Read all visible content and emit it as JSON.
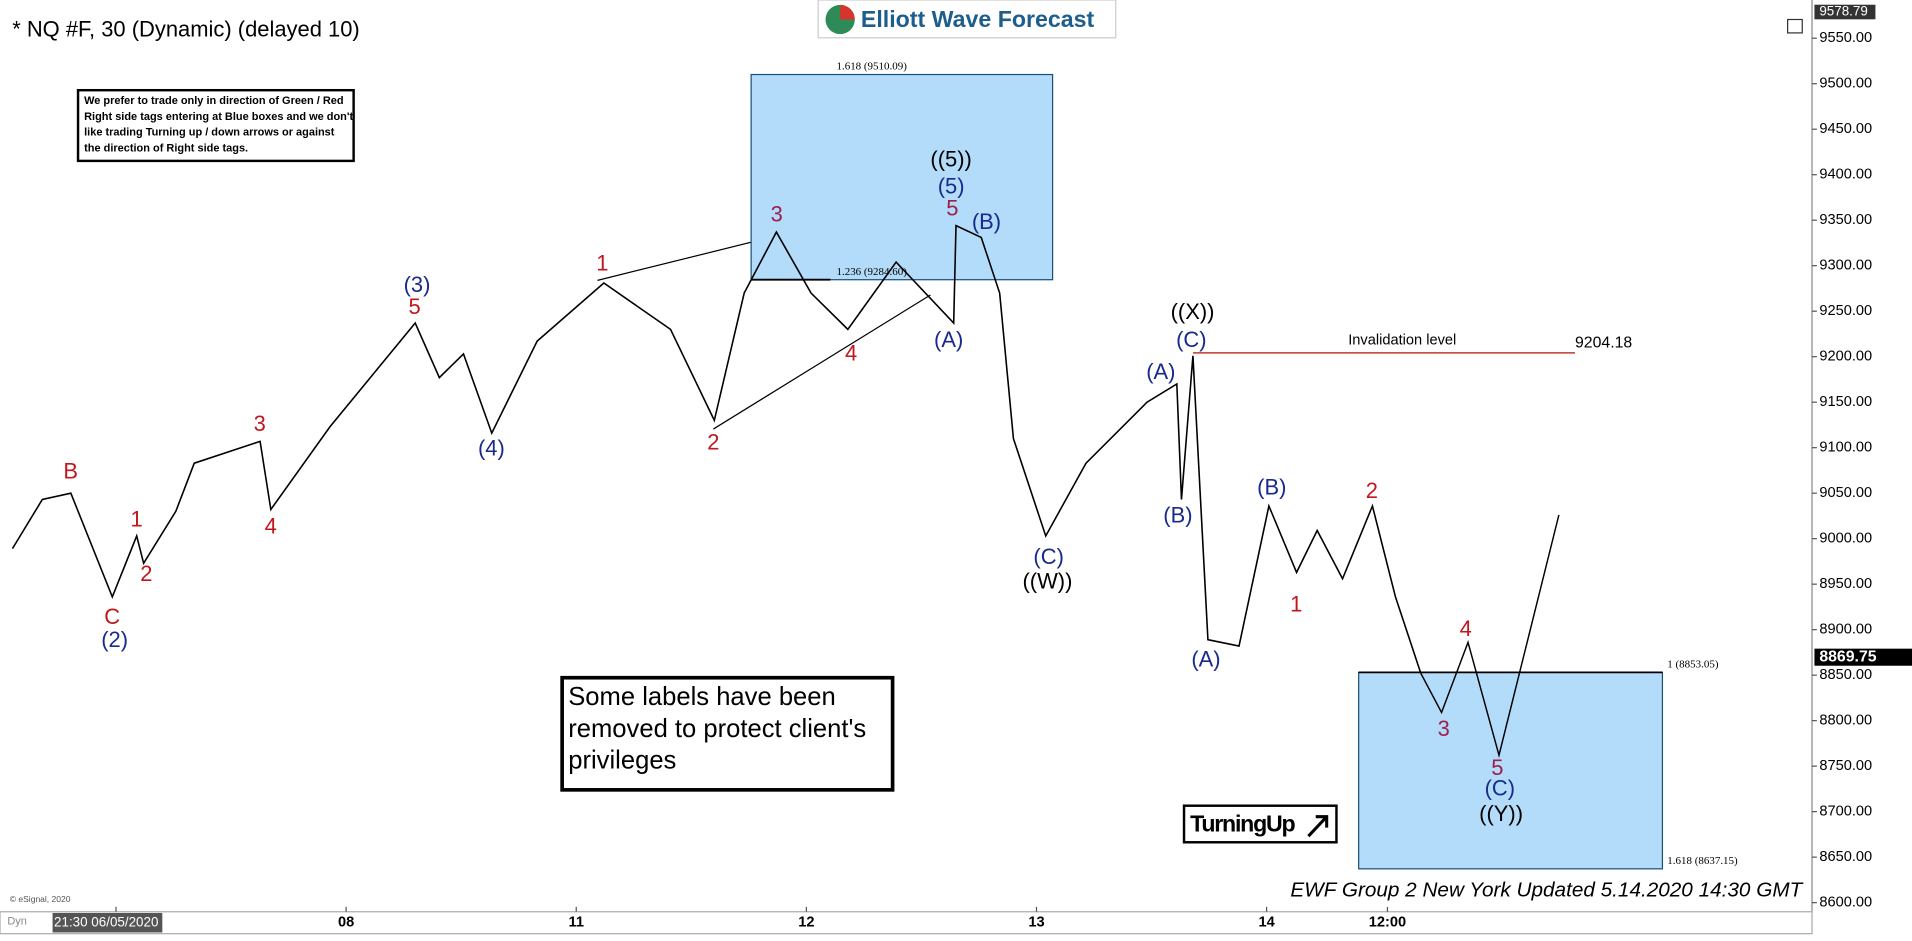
{
  "title": "* NQ #F, 30 (Dynamic) (delayed 10)",
  "logo": "Elliott Wave Forecast",
  "disclaimer": [
    "We prefer to trade only in direction of Green / Red",
    "Right side tags entering at Blue boxes and we don't",
    "like trading Turning up / down arrows or against",
    "the direction of Right side tags."
  ],
  "notice": [
    "Some labels have been",
    "removed to protect client's",
    "privileges"
  ],
  "badge": "TurningUp",
  "footer": "EWF Group 2 New York Updated 5.14.2020 14:30 GMT",
  "copyright": "© eSignal, 2020",
  "mode": "Dyn",
  "chart_data": {
    "type": "line",
    "color": "#000000",
    "xlim": [
      -0.504,
      7.37
    ],
    "ylim": [
      8590,
      9592
    ],
    "xticks": [
      {
        "value": 0,
        "label": "21:30 06/05/2020"
      },
      {
        "value": 1,
        "label": "08"
      },
      {
        "value": 2,
        "label": "11"
      },
      {
        "value": 3,
        "label": "12"
      },
      {
        "value": 4,
        "label": "13"
      },
      {
        "value": 5,
        "label": "14"
      },
      {
        "value": 5.525,
        "label": "12:00"
      }
    ],
    "yticks": [
      {
        "value": 8600,
        "label": "8600.00"
      },
      {
        "value": 8650,
        "label": "8650.00"
      },
      {
        "value": 8700,
        "label": "8700.00"
      },
      {
        "value": 8750,
        "label": "8750.00"
      },
      {
        "value": 8800,
        "label": "8800.00"
      },
      {
        "value": 8850,
        "label": "8850.00"
      },
      {
        "value": 8900,
        "label": "8900.00"
      },
      {
        "value": 8950,
        "label": "8950.00"
      },
      {
        "value": 9000,
        "label": "9000.00"
      },
      {
        "value": 9050,
        "label": "9050.00"
      },
      {
        "value": 9100,
        "label": "9100.00"
      },
      {
        "value": 9150,
        "label": "9150.00"
      },
      {
        "value": 9200,
        "label": "9200.00"
      },
      {
        "value": 9250,
        "label": "9250.00"
      },
      {
        "value": 9300,
        "label": "9300.00"
      },
      {
        "value": 9350,
        "label": "9350.00"
      },
      {
        "value": 9400,
        "label": "9400.00"
      },
      {
        "value": 9450,
        "label": "9450.00"
      },
      {
        "value": 9500,
        "label": "9500.00"
      },
      {
        "value": 9550,
        "label": "9550.00"
      }
    ],
    "top_marker": 9578.79,
    "last_price": 8869.75,
    "x": [
      -0.45,
      -0.32,
      -0.196,
      -0.016,
      0.09,
      0.12,
      0.26,
      0.34,
      0.626,
      0.673,
      0.93,
      1.3,
      1.405,
      1.51,
      1.633,
      1.83,
      2.12,
      2.41,
      2.6,
      2.73,
      2.87,
      3.02,
      3.18,
      3.39,
      3.64,
      3.65,
      3.76,
      3.84,
      3.9,
      4.04,
      4.215,
      4.48,
      4.61,
      4.63,
      4.68,
      4.745,
      4.88,
      5.01,
      5.13,
      5.22,
      5.33,
      5.46,
      5.56,
      5.67
    ],
    "values": [
      8989,
      9043,
      9050,
      8936,
      9003,
      8973,
      9030,
      9083,
      9107,
      9032,
      9123,
      9237,
      9177,
      9203,
      9116,
      9217,
      9281,
      9230,
      9130,
      9270,
      9337,
      9270,
      9230,
      9304,
      9237,
      9344,
      9331,
      9270,
      9110,
      9003,
      9083,
      9150,
      9170,
      9043,
      9201,
      8889,
      8882,
      9036,
      8963,
      9009,
      8956,
      9036,
      8936,
      8852
    ],
    "projection": {
      "color": "#000000",
      "x": [
        5.67,
        5.76,
        5.875,
        6.01,
        6.27
      ],
      "values": [
        8852,
        8809,
        8886,
        8762,
        9026
      ]
    },
    "zones": [
      {
        "color": "#b3dcfa",
        "x": [
          2.76,
          4.07
        ],
        "top": 9510.09,
        "bottom": 9284.6,
        "top_label": "1.618 (9510.09)",
        "bottom_label": "1.236 (9284.60)"
      },
      {
        "color": "#b3dcfa",
        "x": [
          5.4,
          6.72
        ],
        "top": 8853.05,
        "bottom": 8637.15,
        "top_label": "1 (8853.05)",
        "bottom_label": "1.618 (8637.15)"
      }
    ],
    "invalidation": {
      "value": 9204.18,
      "label": "9204.18",
      "text": "Invalidation level",
      "x": [
        4.68,
        6.34
      ],
      "color": "#c0392b"
    },
    "annotations": [
      {
        "text": "B",
        "color": "#c0161d"
      },
      {
        "text": "C",
        "color": "#c0161d"
      },
      {
        "text": "(2)",
        "color": "#1a2a8c"
      },
      {
        "text": "1",
        "color": "#c0161d"
      },
      {
        "text": "2",
        "color": "#c0161d"
      },
      {
        "text": "3",
        "color": "#c0161d"
      },
      {
        "text": "4",
        "color": "#c0161d"
      },
      {
        "text": "(3)",
        "color": "#1a2a8c"
      },
      {
        "text": "5",
        "color": "#c0161d"
      },
      {
        "text": "(4)",
        "color": "#1a2a8c"
      },
      {
        "text": "1",
        "color": "#c0161d"
      },
      {
        "text": "2",
        "color": "#c0161d"
      },
      {
        "text": "3",
        "color": "#9e1f4a"
      },
      {
        "text": "4",
        "color": "#c0161d"
      },
      {
        "text": "((5))",
        "color": "#000000"
      },
      {
        "text": "(5)",
        "color": "#1a2a8c"
      },
      {
        "text": "5",
        "color": "#9e1f4a"
      },
      {
        "text": "(B)",
        "color": "#1a2a8c"
      },
      {
        "text": "(A)",
        "color": "#1a2a8c"
      },
      {
        "text": "(C)",
        "color": "#1a2a8c"
      },
      {
        "text": "((W))",
        "color": "#000000"
      },
      {
        "text": "((X))",
        "color": "#000000"
      },
      {
        "text": "(C)",
        "color": "#1a2a8c"
      },
      {
        "text": "(A)",
        "color": "#1a2a8c"
      },
      {
        "text": "(B)",
        "color": "#1a2a8c"
      },
      {
        "text": "(B)",
        "color": "#1a2a8c"
      },
      {
        "text": "2",
        "color": "#c0161d"
      },
      {
        "text": "1",
        "color": "#c0161d"
      },
      {
        "text": "(A)",
        "color": "#1a2a8c"
      },
      {
        "text": "4",
        "color": "#c0161d"
      },
      {
        "text": "3",
        "color": "#9e1f4a"
      },
      {
        "text": "5",
        "color": "#9e1f4a"
      },
      {
        "text": "(C)",
        "color": "#1a2a8c"
      },
      {
        "text": "((Y))",
        "color": "#000000"
      }
    ]
  }
}
